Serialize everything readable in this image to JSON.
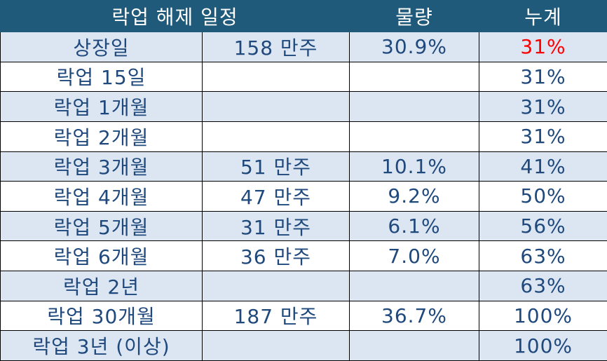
{
  "table": {
    "header": [
      "락업 해제 일정",
      "물량",
      "누계"
    ],
    "rows": [
      [
        "상장일",
        "158 만주",
        "30.9%",
        "31%"
      ],
      [
        "락업 15일",
        null,
        null,
        "31%"
      ],
      [
        "락업 1개월",
        null,
        null,
        "31%"
      ],
      [
        "락업 2개월",
        null,
        null,
        "31%"
      ],
      [
        "락업 3개월",
        "51 만주",
        "10.1%",
        "41%"
      ],
      [
        "락업 4개월",
        "47 만주",
        "9.2%",
        "50%"
      ],
      [
        "락업 5개월",
        "31 만주",
        "6.1%",
        "56%"
      ],
      [
        "락업 6개월",
        "36 만주",
        "7.0%",
        "63%"
      ],
      [
        "락업 2년",
        null,
        null,
        "63%"
      ],
      [
        "락업 30개월",
        "187 만주",
        "36.7%",
        "100%"
      ],
      [
        "락업 3년 (이상)",
        null,
        null,
        "100%"
      ]
    ],
    "highlight_color": "#ff0000"
  }
}
